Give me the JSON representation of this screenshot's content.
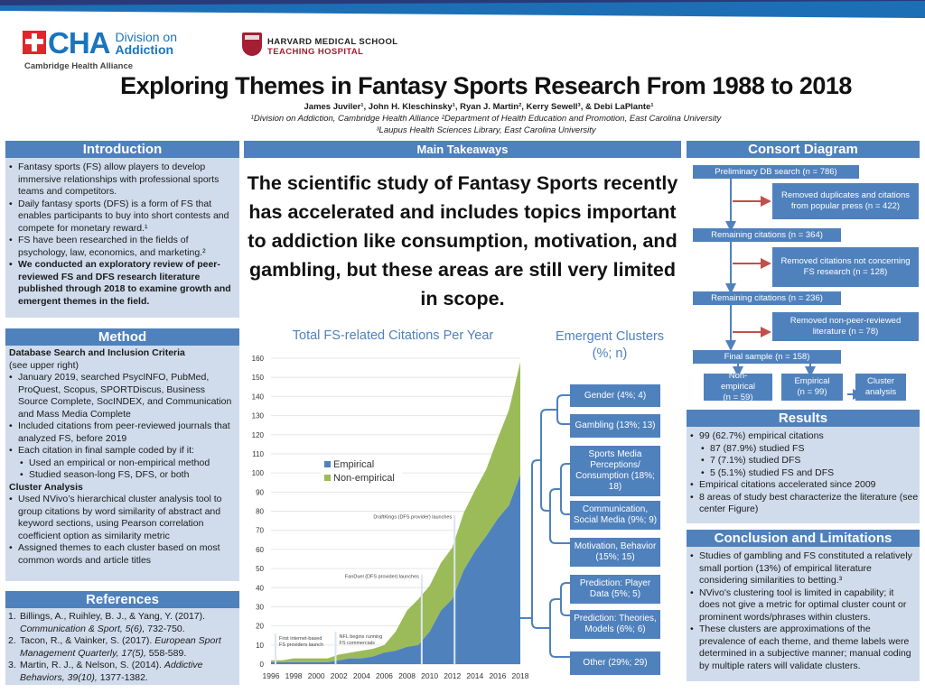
{
  "header": {
    "cha_logo": {
      "letters": "CHA",
      "division_line1": "Division on",
      "division_line2": "Addiction",
      "subtitle": "Cambridge Health Alliance"
    },
    "hms_logo": {
      "line1": "HARVARD MEDICAL SCHOOL",
      "line2": "TEACHING HOSPITAL"
    },
    "title": "Exploring Themes in Fantasy Sports Research From 1988 to 2018",
    "authors": "James Juviler¹, John H. Kleschinsky¹, Ryan J. Martin², Kerry Sewell³, & Debi LaPlante¹",
    "affiliations_line1": "¹Division on Addiction, Cambridge Health Alliance ²Department of Health Education and Promotion, East Carolina University",
    "affiliations_line2": "³Laupus Health Sciences Library, East Carolina University"
  },
  "colors": {
    "section_header": "#4f81bd",
    "panel_bg": "#d0dcec",
    "empirical": "#4f81bd",
    "non_empirical": "#9bbb59",
    "removed_arrow": "#c0504d",
    "banner_dark": "#283a7a",
    "banner_light": "#1d6fb5"
  },
  "introduction": {
    "title": "Introduction",
    "bullets": [
      "Fantasy sports (FS) allow players to develop immersive relationships with professional sports teams and competitors.",
      "Daily fantasy sports (DFS) is a form of FS that enables participants to buy into short contests and compete for monetary reward.¹",
      "FS have been researched in the fields of psychology, law, economics, and marketing.²",
      "We conducted an exploratory review of peer-reviewed FS and DFS research literature published through 2018 to examine growth and emergent themes in the field."
    ]
  },
  "method": {
    "title": "Method",
    "subhead1": "Database Search and Inclusion Criteria",
    "note1": "(see upper right)",
    "bullets1": [
      "January 2019, searched PsycINFO, PubMed, ProQuest, Scopus, SPORTDiscus, Business Source Complete, SocINDEX, and Communication and Mass Media Complete",
      "Included citations from peer-reviewed journals that analyzed FS, before 2019",
      "Each citation in final sample coded by if it:"
    ],
    "sub_bullets": [
      "Used an empirical or non-empirical method",
      "Studied season-long FS, DFS, or both"
    ],
    "subhead2": "Cluster Analysis",
    "bullets2": [
      "Used NVivo’s hierarchical cluster analysis tool to group citations by word similarity of abstract and keyword sections, using Pearson correlation coefficient option as similarity metric",
      "Assigned themes to each cluster based on most common words and article titles"
    ]
  },
  "references": {
    "title": "References",
    "items": [
      {
        "num": "1.",
        "authors": "Billings, A., Ruihley, B. J., & Yang, Y. (2017).",
        "journal": "Communication & Sport, 5(6),",
        "pages": "732-750."
      },
      {
        "num": "2.",
        "authors": "Tacon, R., & Vainker, S. (2017).",
        "journal": "European Sport Management Quarterly, 17(5),",
        "pages": "558-589."
      },
      {
        "num": "3.",
        "authors": "Martin, R. J., & Nelson, S. (2014).",
        "journal": "Addictive Behaviors, 39(10),",
        "pages": "1377-1382."
      }
    ]
  },
  "main_takeaways": {
    "title": "Main Takeaways",
    "text": "The scientific study of Fantasy Sports recently has accelerated and includes topics important to addiction like consumption, motivation, and gambling, but these areas are still very limited in scope."
  },
  "chart_data": {
    "type": "area",
    "stacked": true,
    "title": "Total FS-related Citations Per Year",
    "xlabel": "",
    "ylabel": "",
    "ylim": [
      0,
      160
    ],
    "yticks": [
      0,
      10,
      20,
      30,
      40,
      50,
      60,
      70,
      80,
      90,
      100,
      110,
      120,
      130,
      140,
      150,
      160
    ],
    "x": [
      1996,
      1997,
      1998,
      1999,
      2000,
      2001,
      2002,
      2003,
      2004,
      2005,
      2006,
      2007,
      2008,
      2009,
      2010,
      2011,
      2012,
      2013,
      2014,
      2015,
      2016,
      2017,
      2018
    ],
    "xtick_labels": [
      "1996",
      "1998",
      "2000",
      "2002",
      "2004",
      "2006",
      "2008",
      "2010",
      "2012",
      "2014",
      "2016",
      "2018"
    ],
    "series": [
      {
        "name": "Empirical",
        "color": "#4f81bd",
        "values": [
          1,
          1,
          1,
          1,
          1,
          1,
          2,
          3,
          3,
          4,
          6,
          7,
          9,
          10,
          17,
          28,
          34,
          49,
          59,
          67,
          76,
          83,
          99
        ]
      },
      {
        "name": "Non-empirical",
        "color": "#9bbb59",
        "values": [
          1,
          1,
          2,
          2,
          2,
          2,
          3,
          3,
          4,
          4,
          4,
          10,
          19,
          24,
          24,
          25,
          27,
          30,
          32,
          35,
          42,
          50,
          59
        ]
      }
    ],
    "legend": {
      "position": "inside-left",
      "entries": [
        "Empirical",
        "Non-empirical"
      ]
    },
    "grid": true,
    "annotations": [
      {
        "x": 1996.4,
        "label_line1": "First internet-based",
        "label_line2": "FS providers launch"
      },
      {
        "x": 2001.7,
        "label_line1": "NFL begins running",
        "label_line2": "FS commercials"
      },
      {
        "x": 2009.3,
        "label_line1": "FanDuel (DFS provider) launches",
        "label_line2": ""
      },
      {
        "x": 2012.2,
        "label_line1": "DraftKings (DFS provider) launches",
        "label_line2": ""
      }
    ]
  },
  "clusters": {
    "title_line1": "Emergent Clusters",
    "title_line2": "(%; n)",
    "items": [
      {
        "label": "Gender (4%; 4)",
        "percent": 4,
        "n": 4
      },
      {
        "label": "Gambling (13%; 13)",
        "percent": 13,
        "n": 13
      },
      {
        "label": "Sports Media Perceptions/ Consumption (18%; 18)",
        "percent": 18,
        "n": 18
      },
      {
        "label": "Communication, Social Media (9%; 9)",
        "percent": 9,
        "n": 9
      },
      {
        "label": "Motivation, Behavior (15%; 15)",
        "percent": 15,
        "n": 15
      },
      {
        "label": "Prediction: Player Data (5%; 5)",
        "percent": 5,
        "n": 5
      },
      {
        "label": "Prediction: Theories, Models (6%; 6)",
        "percent": 6,
        "n": 6
      },
      {
        "label": "Other (29%; 29)",
        "percent": 29,
        "n": 29
      }
    ]
  },
  "consort": {
    "title": "Consort Diagram",
    "prelim": "Preliminary DB search (n = 786)",
    "removed1": "Removed duplicates and citations from popular press (n = 422)",
    "remaining1": "Remaining citations (n = 364)",
    "removed2": "Removed citations not concerning FS research (n = 128)",
    "remaining2": "Remaining citations (n = 236)",
    "removed3": "Removed non-peer-reviewed literature (n = 78)",
    "final": "Final sample (n = 158)",
    "nonempirical": "Non-empirical (n = 59)",
    "empirical": "Empirical (n = 99)",
    "cluster": "Cluster analysis"
  },
  "results": {
    "title": "Results",
    "items": [
      {
        "text": "99 (62.7%) empirical citations",
        "level": 0
      },
      {
        "text": "87 (87.9%) studied FS",
        "level": 1
      },
      {
        "text": "7 (7.1%) studied DFS",
        "level": 1
      },
      {
        "text": "5 (5.1%) studied FS and DFS",
        "level": 1
      },
      {
        "text": "Empirical citations accelerated since 2009",
        "level": 0
      },
      {
        "text": "8 areas of study best characterize the literature (see center Figure)",
        "level": 0
      }
    ]
  },
  "conclusion": {
    "title": "Conclusion and Limitations",
    "bullets": [
      "Studies of gambling and FS constituted a relatively small portion (13%) of empirical literature considering similarities to betting.³",
      "NVivo's clustering tool is limited in capability; it does not give a metric for optimal cluster count or prominent words/phrases within clusters.",
      "These clusters are approximations of the prevalence of each theme, and theme labels were determined in a subjective manner; manual coding by multiple raters will validate clusters."
    ]
  }
}
